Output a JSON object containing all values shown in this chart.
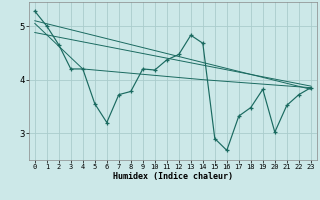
{
  "xlabel": "Humidex (Indice chaleur)",
  "xlim": [
    -0.5,
    23.5
  ],
  "ylim": [
    2.5,
    5.45
  ],
  "yticks": [
    3,
    4,
    5
  ],
  "xticks": [
    0,
    1,
    2,
    3,
    4,
    5,
    6,
    7,
    8,
    9,
    10,
    11,
    12,
    13,
    14,
    15,
    16,
    17,
    18,
    19,
    20,
    21,
    22,
    23
  ],
  "bg_color": "#cce8e8",
  "grid_color": "#aacccc",
  "line_color": "#1a6a60",
  "line1_x": [
    0,
    1,
    2,
    3,
    4,
    5,
    6,
    7,
    8,
    9,
    10,
    11,
    12,
    13,
    14,
    15,
    16,
    17,
    18,
    19,
    20,
    21,
    22,
    23
  ],
  "line1_y": [
    5.28,
    5.0,
    4.65,
    4.2,
    4.2,
    3.55,
    3.2,
    3.72,
    3.78,
    4.2,
    4.18,
    4.37,
    4.47,
    4.83,
    4.68,
    2.9,
    2.68,
    3.32,
    3.48,
    3.82,
    3.02,
    3.52,
    3.72,
    3.85
  ],
  "trend1_x": [
    0,
    23
  ],
  "trend1_y": [
    5.1,
    3.82
  ],
  "trend2_x": [
    0,
    23
  ],
  "trend2_y": [
    4.88,
    3.88
  ],
  "trend3_x": [
    0,
    4,
    14,
    23
  ],
  "trend3_y": [
    5.05,
    4.2,
    4.0,
    3.85
  ]
}
